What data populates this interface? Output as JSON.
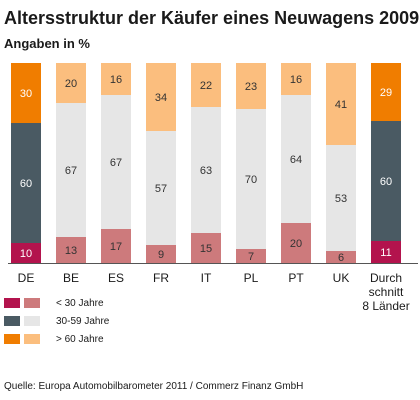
{
  "header": {
    "title": "Altersstruktur der Käufer eines Neuwagens 2009",
    "subtitle": "Angaben in %"
  },
  "colors": {
    "young_dark": "#b3134d",
    "young_light": "#cd7a7c",
    "mid_dark": "#4a5a63",
    "mid_light": "#e6e6e6",
    "old_dark": "#f07d00",
    "old_light": "#fbbe7e"
  },
  "chart_data": {
    "type": "bar",
    "stacked": true,
    "categories": [
      "DE",
      "BE",
      "ES",
      "FR",
      "IT",
      "PL",
      "PT",
      "UK",
      "Durch\nschnitt\n8 Länder"
    ],
    "highlighted_categories": [
      "DE",
      "Durch\nschnitt\n8 Länder"
    ],
    "series": [
      {
        "name": "< 30 Jahre",
        "values": [
          10,
          13,
          17,
          9,
          15,
          7,
          20,
          6,
          11
        ]
      },
      {
        "name": "30-59 Jahre",
        "values": [
          60,
          67,
          67,
          57,
          63,
          70,
          64,
          53,
          60
        ]
      },
      {
        "name": "> 60 Jahre",
        "values": [
          30,
          20,
          16,
          34,
          22,
          23,
          16,
          41,
          29
        ]
      }
    ],
    "ylim": [
      0,
      100
    ],
    "grid": false,
    "legend": "bottom-left"
  },
  "legend": [
    {
      "label": "< 30 Jahre"
    },
    {
      "label": "30-59 Jahre"
    },
    {
      "label": "> 60 Jahre"
    }
  ],
  "footer": {
    "source": "Quelle: Europa Automobilbarometer 2011 / Commerz Finanz GmbH"
  }
}
